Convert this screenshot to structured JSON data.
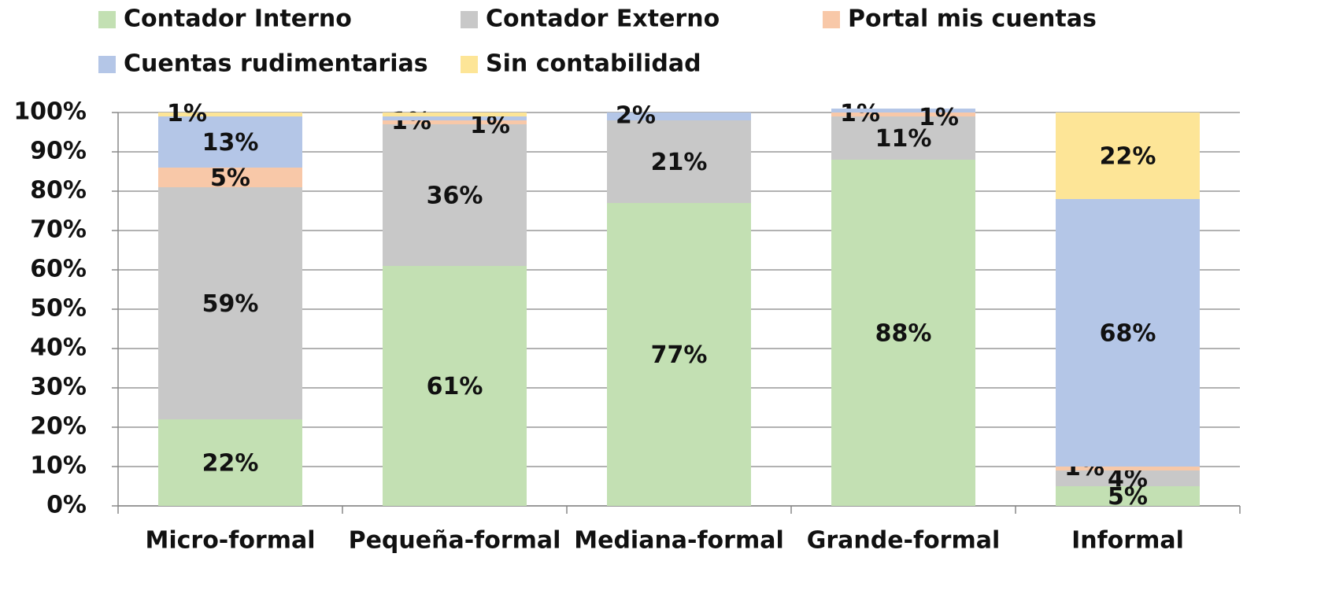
{
  "chart_data": {
    "type": "stacked_bar",
    "categories": [
      "Micro-formal",
      "Pequeña-formal",
      "Mediana-formal",
      "Grande-formal",
      "Informal"
    ],
    "series": [
      {
        "name": "Contador Interno",
        "color": "#c3e0b3",
        "values": [
          22,
          61,
          77,
          88,
          5
        ],
        "value_labels": [
          "22%",
          "61%",
          "77%",
          "88%",
          "5%"
        ]
      },
      {
        "name": "Contador Externo",
        "color": "#c8c8c8",
        "values": [
          59,
          36,
          21,
          11,
          4
        ],
        "value_labels": [
          "59%",
          "36%",
          "21%",
          "11%",
          "4%"
        ]
      },
      {
        "name": "Portal mis cuentas",
        "color": "#f8c8a8",
        "values": [
          5,
          1,
          0,
          1,
          1
        ],
        "value_labels": [
          "5%",
          "1%",
          null,
          "1%",
          "1%"
        ]
      },
      {
        "name": "Cuentas rudimentarias",
        "color": "#b4c6e7",
        "values": [
          13,
          1,
          2,
          1,
          68
        ],
        "value_labels": [
          "13%",
          "1%",
          "2%",
          "1%",
          "68%"
        ]
      },
      {
        "name": "Sin contabilidad",
        "color": "#fde597",
        "values": [
          1,
          1,
          0,
          0,
          22
        ],
        "value_labels": [
          "1%",
          null,
          null,
          null,
          "22%"
        ]
      }
    ],
    "ylim": [
      0,
      100
    ],
    "yticks": [
      {
        "value": 0,
        "label": "0%"
      },
      {
        "value": 10,
        "label": "10%"
      },
      {
        "value": 20,
        "label": "20%"
      },
      {
        "value": 30,
        "label": "30%"
      },
      {
        "value": 40,
        "label": "40%"
      },
      {
        "value": 50,
        "label": "50%"
      },
      {
        "value": 60,
        "label": "60%"
      },
      {
        "value": 70,
        "label": "70%"
      },
      {
        "value": 80,
        "label": "80%"
      },
      {
        "value": 90,
        "label": "90%"
      },
      {
        "value": 100,
        "label": "100%"
      }
    ],
    "grid": true
  }
}
